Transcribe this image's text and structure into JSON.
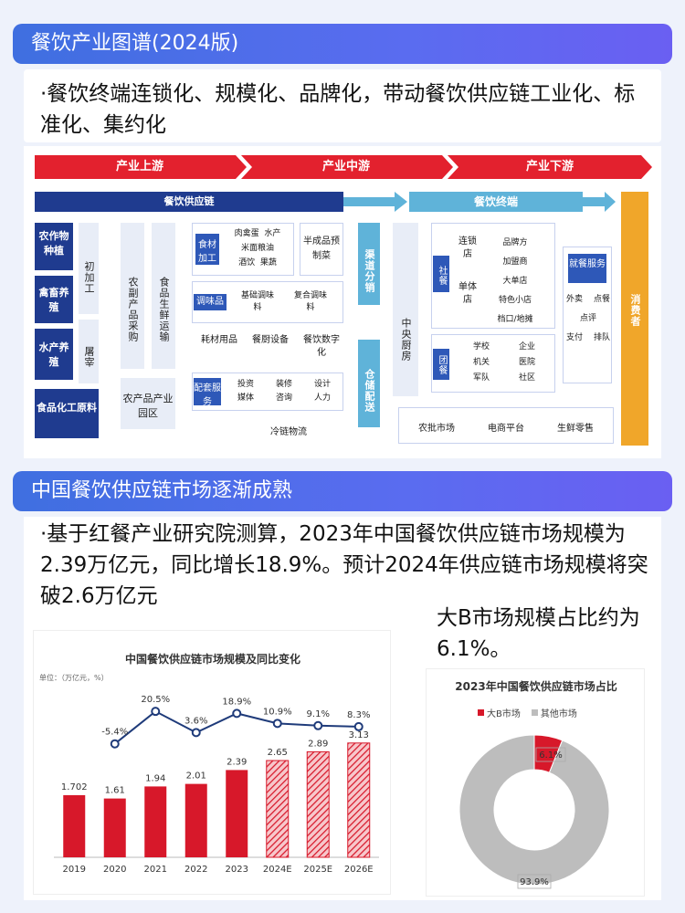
{
  "section1": {
    "title": "餐饮产业图谱(2024版)",
    "bullet": "·餐饮终端连锁化、规模化、品牌化，带动餐饮供应链工业化、标准化、集约化"
  },
  "diagram": {
    "stages": [
      "产业上游",
      "产业中游",
      "产业下游"
    ],
    "supply_chain_label": "餐饮供应链",
    "terminal_label": "餐饮终端",
    "consumer_label": "消费者",
    "col1": [
      "农作物种植",
      "禽畜养殖",
      "水产养殖",
      "食品化工原料"
    ],
    "col2": [
      "初加工",
      "屠宰"
    ],
    "col3": [
      "农副产品采购"
    ],
    "col4": [
      "食品生鲜运输"
    ],
    "park": "农产品产业园区",
    "food_tag": "食材加工",
    "food_items": [
      "肉禽蛋",
      "水产",
      "米面粮油",
      "酒饮",
      "果蔬"
    ],
    "semi": "半成品预制菜",
    "season_tag": "调味品",
    "season_items": [
      "基础调味料",
      "复合调味料"
    ],
    "equip": [
      "耗材用品",
      "餐厨设备",
      "餐饮数字化"
    ],
    "service_tag": "配套服务",
    "service_items": [
      "投资",
      "装修",
      "设计",
      "媒体",
      "咨询",
      "人力"
    ],
    "cold": "冷链物流",
    "channel": "渠道分销",
    "warehouse": "仓储配送",
    "central": "中央厨房",
    "social_tag": "社餐",
    "chain_store": "连锁店",
    "single_store": "单体店",
    "social_items": [
      "品牌方",
      "加盟商",
      "大单店",
      "特色小店",
      "档口/地摊"
    ],
    "group_tag": "团餐",
    "group_items": [
      "学校",
      "企业",
      "机关",
      "医院",
      "军队",
      "社区"
    ],
    "dining_tag": "就餐服务",
    "dining_items": [
      "外卖",
      "点餐",
      "点评",
      "支付",
      "排队"
    ],
    "bottom_items": [
      "农批市场",
      "电商平台",
      "生鲜零售"
    ]
  },
  "section2": {
    "title": "中国餐饮供应链市场逐渐成熟",
    "bullet": "·基于红餐产业研究院测算，2023年中国餐饮供应链市场规模为2.39万亿元，同比增长18.9%。预计2024年供应链市场规模将突破2.6万亿元",
    "side_note": "大B市场规模占比约为6.1%。"
  },
  "colors": {
    "bar": "#d7182a",
    "line": "#1f3b7a",
    "pie_other": "#bdbdbd"
  },
  "chart_data": [
    {
      "type": "bar",
      "title": "中国餐饮供应链市场规模及同比变化",
      "unit": "单位：（万亿元，%）",
      "categories": [
        "2019",
        "2020",
        "2021",
        "2022",
        "2023",
        "2024E",
        "2025E",
        "2026E"
      ],
      "series": [
        {
          "values": [
            1.702,
            1.61,
            1.94,
            2.01,
            2.39,
            2.65,
            2.89,
            3.13
          ],
          "labels": [
            "1.702",
            "1.61",
            "1.94",
            "2.01",
            "2.39",
            "2.65",
            "2.89",
            "3.13"
          ]
        },
        {
          "values": [
            null,
            -5.4,
            20.5,
            3.6,
            18.9,
            10.9,
            9.1,
            8.3
          ],
          "labels": [
            "",
            "-5.4%",
            "20.5%",
            "3.6%",
            "18.9%",
            "10.9%",
            "9.1%",
            "8.3%"
          ]
        }
      ],
      "estimated_from": "2024E"
    },
    {
      "type": "pie",
      "title": "2023年中国餐饮供应链市场占比",
      "categories": [
        "大B市场",
        "其他市场"
      ],
      "values": [
        6.1,
        93.9
      ],
      "labels": [
        "6.1%",
        "93.9%"
      ]
    }
  ]
}
